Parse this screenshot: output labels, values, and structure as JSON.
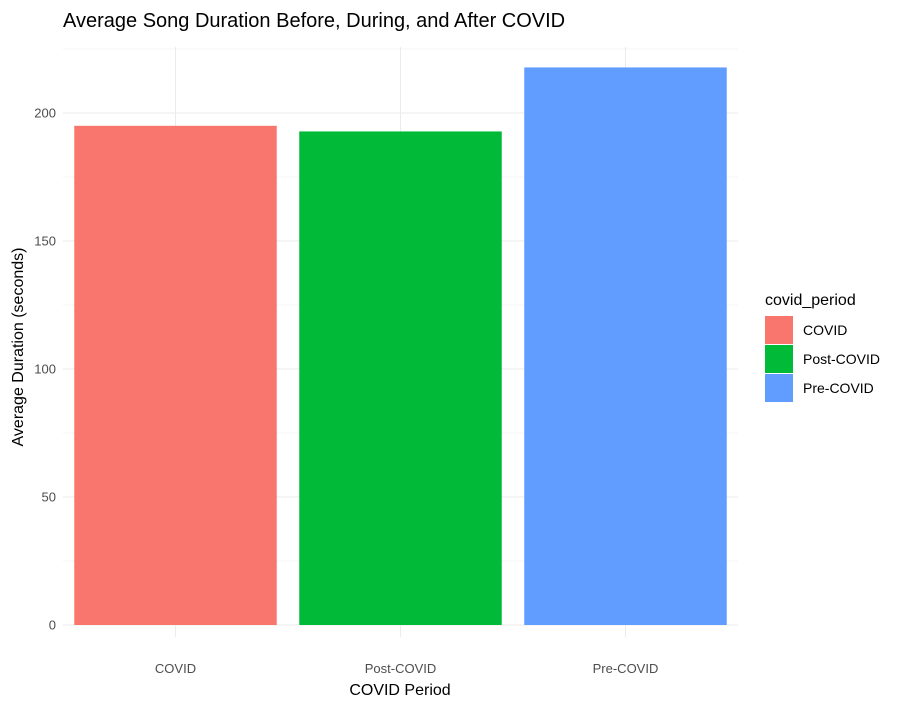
{
  "chart_data": {
    "type": "bar",
    "title": "Average Song Duration Before, During, and After COVID",
    "xlabel": "COVID Period",
    "ylabel": "Average Duration (seconds)",
    "categories": [
      "COVID",
      "Post-COVID",
      "Pre-COVID"
    ],
    "values": [
      195,
      192.8,
      217.8
    ],
    "colors": [
      "#F8766D",
      "#00BA38",
      "#619CFF"
    ],
    "ylim": [
      0,
      225
    ],
    "yticks": [
      0,
      50,
      100,
      150,
      200
    ],
    "grid": true,
    "legend": {
      "title": "covid_period",
      "position": "right",
      "entries": [
        "COVID",
        "Post-COVID",
        "Pre-COVID"
      ]
    }
  }
}
